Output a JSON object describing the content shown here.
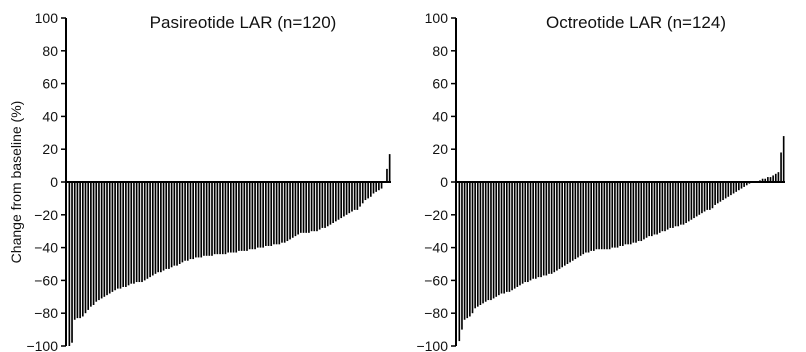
{
  "figure": {
    "ylabel": "Change from baseline (%)"
  },
  "chart_data": [
    {
      "type": "bar",
      "title": "Pasireotide LAR (n=120)",
      "ylabel": "Change from baseline (%)",
      "ylim": [
        -100,
        100
      ],
      "yticks": [
        -100,
        -80,
        -60,
        -40,
        -20,
        0,
        20,
        40,
        60,
        80,
        100
      ],
      "ytick_labels": [
        "−100",
        "−80",
        "−60",
        "−40",
        "−20",
        "0",
        "20",
        "40",
        "60",
        "80",
        "100"
      ],
      "grid": false,
      "sort": "ascending waterfall",
      "colors": {
        "bar": "#000000",
        "axis": "#000000"
      },
      "values": [
        -100,
        -98,
        -84,
        -83,
        -83,
        -82,
        -80,
        -78,
        -76,
        -75,
        -73,
        -72,
        -71,
        -70,
        -69,
        -68,
        -67,
        -66,
        -65,
        -65,
        -64,
        -64,
        -63,
        -62,
        -62,
        -61,
        -61,
        -61,
        -60,
        -59,
        -58,
        -57,
        -56,
        -55,
        -55,
        -54,
        -53,
        -53,
        -52,
        -51,
        -51,
        -50,
        -49,
        -48,
        -48,
        -47,
        -47,
        -46,
        -46,
        -46,
        -45,
        -45,
        -45,
        -45,
        -44,
        -44,
        -44,
        -44,
        -44,
        -43,
        -43,
        -43,
        -43,
        -42,
        -42,
        -42,
        -42,
        -41,
        -41,
        -41,
        -40,
        -40,
        -40,
        -39,
        -39,
        -39,
        -38,
        -38,
        -38,
        -37,
        -37,
        -36,
        -35,
        -34,
        -33,
        -32,
        -31,
        -31,
        -31,
        -31,
        -30,
        -30,
        -30,
        -29,
        -28,
        -28,
        -27,
        -26,
        -25,
        -24,
        -23,
        -22,
        -21,
        -20,
        -19,
        -18,
        -17,
        -17,
        -15,
        -13,
        -11,
        -10,
        -9,
        -7,
        -6,
        -5,
        -4,
        0,
        8,
        17
      ]
    },
    {
      "type": "bar",
      "title": "Octreotide LAR (n=124)",
      "ylabel": "",
      "ylim": [
        -100,
        100
      ],
      "yticks": [
        -100,
        -80,
        -60,
        -40,
        -20,
        0,
        20,
        40,
        60,
        80,
        100
      ],
      "ytick_labels": [
        "−100",
        "−80",
        "−60",
        "−40",
        "−20",
        "0",
        "20",
        "40",
        "60",
        "80",
        "100"
      ],
      "grid": false,
      "sort": "ascending waterfall",
      "colors": {
        "bar": "#000000",
        "axis": "#000000"
      },
      "values": [
        -97,
        -90,
        -84,
        -83,
        -82,
        -80,
        -77,
        -76,
        -75,
        -74,
        -73,
        -72,
        -72,
        -71,
        -70,
        -69,
        -68,
        -68,
        -67,
        -67,
        -66,
        -65,
        -64,
        -63,
        -62,
        -61,
        -61,
        -60,
        -59,
        -59,
        -58,
        -58,
        -57,
        -57,
        -56,
        -56,
        -55,
        -54,
        -53,
        -52,
        -51,
        -50,
        -49,
        -48,
        -47,
        -46,
        -45,
        -44,
        -43,
        -43,
        -42,
        -42,
        -41,
        -41,
        -41,
        -41,
        -41,
        -41,
        -40,
        -40,
        -40,
        -39,
        -39,
        -38,
        -38,
        -38,
        -37,
        -37,
        -36,
        -36,
        -35,
        -34,
        -33,
        -33,
        -32,
        -32,
        -31,
        -30,
        -30,
        -29,
        -28,
        -28,
        -27,
        -27,
        -26,
        -26,
        -25,
        -24,
        -23,
        -22,
        -21,
        -20,
        -19,
        -18,
        -17,
        -17,
        -16,
        -14,
        -13,
        -12,
        -11,
        -10,
        -9,
        -8,
        -7,
        -6,
        -5,
        -4,
        -3,
        -2,
        -1,
        0,
        0,
        0,
        1,
        2,
        2,
        3,
        3,
        4,
        5,
        6,
        18,
        28
      ]
    }
  ]
}
